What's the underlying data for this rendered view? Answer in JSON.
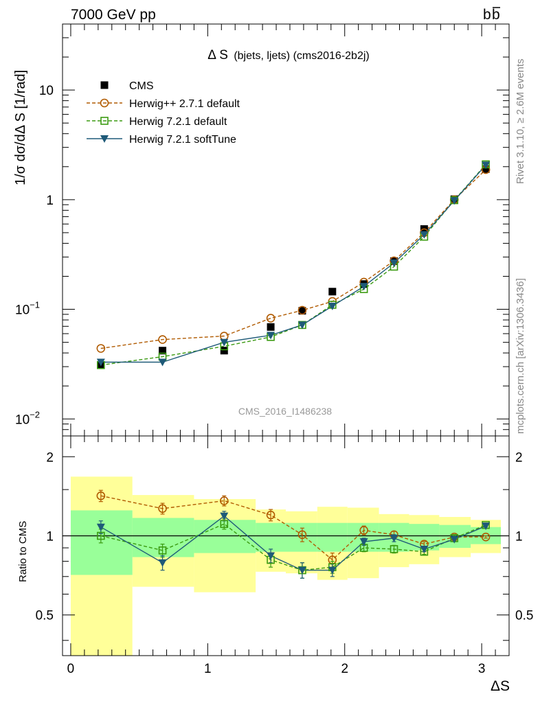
{
  "header": {
    "left": "7000 GeV pp",
    "right_main": "b",
    "right_bar": "b"
  },
  "side_text": {
    "rivet": "Rivet 3.1.10, ≥ 2.6M events",
    "mcplots": "mcplots.cern.ch [arXiv:1306.3436]"
  },
  "chart_data": [
    {
      "type": "line",
      "title_main": "Δ S",
      "title_sub": "(bjets, ljets) (cms2016-2b2j)",
      "watermark": "CMS_2016_I1486238",
      "ylabel": "1/σ dσ/dΔ S [1/rad]",
      "yscale": "log",
      "ylim": [
        0.007,
        40
      ],
      "xlim": [
        -0.06,
        3.2
      ],
      "y_ticks": [
        0.01,
        0.1,
        1,
        10
      ],
      "y_tick_labels": [
        {
          "base": "10",
          "exp": "−2"
        },
        {
          "base": "10",
          "exp": "−1"
        },
        {
          "base": "1",
          "exp": ""
        },
        {
          "base": "10",
          "exp": ""
        }
      ],
      "legend_position": "top-left",
      "colors": {
        "cms": "#000000",
        "herwigpp": "#b05a00",
        "h721": "#3a9a10",
        "soft": "#1e5a78"
      },
      "legend": [
        "CMS",
        "Herwig++ 2.7.1 default",
        "Herwig 7.2.1 default",
        "Herwig 7.2.1 softTune"
      ],
      "x": [
        0.22,
        0.67,
        1.12,
        1.46,
        1.69,
        1.91,
        2.14,
        2.36,
        2.58,
        2.8,
        3.03
      ],
      "series": [
        {
          "name": "CMS",
          "key": "cms",
          "values": [
            0.031,
            0.042,
            0.042,
            0.069,
            0.097,
            0.145,
            0.17,
            0.275,
            0.54,
            1.01,
            1.9
          ]
        },
        {
          "name": "Herwig++ 2.7.1 default",
          "key": "herwigpp",
          "values": [
            0.044,
            0.053,
            0.057,
            0.083,
            0.098,
            0.118,
            0.177,
            0.277,
            0.5,
            1.0,
            1.88
          ]
        },
        {
          "name": "Herwig 7.2.1 default",
          "key": "h721",
          "values": [
            0.031,
            0.037,
            0.046,
            0.056,
            0.072,
            0.11,
            0.153,
            0.245,
            0.46,
            0.99,
            2.1
          ]
        },
        {
          "name": "Herwig 7.2.1 softTune",
          "key": "soft",
          "values": [
            0.033,
            0.033,
            0.05,
            0.058,
            0.072,
            0.107,
            0.162,
            0.265,
            0.48,
            0.98,
            2.07
          ]
        }
      ]
    },
    {
      "type": "line",
      "ylabel": "Ratio to CMS",
      "xlabel": "ΔS",
      "yscale": "log",
      "ylim": [
        0.35,
        2.4
      ],
      "xlim": [
        -0.06,
        3.2
      ],
      "y_ticks": [
        0.5,
        1,
        2
      ],
      "y_tick_labels": [
        "0.5",
        "1",
        "2"
      ],
      "x_ticks": [
        0,
        1,
        2,
        3
      ],
      "x_tick_labels": [
        "0",
        "1",
        "2",
        "3"
      ],
      "bands": {
        "edges": [
          0.0,
          0.45,
          0.9,
          1.35,
          1.57,
          1.8,
          2.02,
          2.25,
          2.47,
          2.69,
          2.92,
          3.14
        ],
        "inner_lo": [
          0.71,
          0.83,
          0.86,
          0.87,
          0.87,
          0.87,
          0.87,
          0.87,
          0.88,
          0.9,
          0.93
        ],
        "inner_hi": [
          1.25,
          1.17,
          1.15,
          1.12,
          1.12,
          1.12,
          1.12,
          1.12,
          1.11,
          1.1,
          1.08
        ],
        "outer_lo": [
          0.3,
          0.64,
          0.61,
          0.73,
          0.72,
          0.68,
          0.69,
          0.76,
          0.78,
          0.83,
          0.86
        ],
        "outer_hi": [
          1.68,
          1.43,
          1.38,
          1.26,
          1.24,
          1.29,
          1.28,
          1.21,
          1.2,
          1.18,
          1.15
        ]
      },
      "x": [
        0.22,
        0.67,
        1.12,
        1.46,
        1.69,
        1.91,
        2.14,
        2.36,
        2.58,
        2.8,
        3.03
      ],
      "series": [
        {
          "name": "Herwig++ 2.7.1 default",
          "key": "herwigpp",
          "values": [
            1.42,
            1.27,
            1.36,
            1.2,
            1.01,
            0.81,
            1.05,
            1.01,
            0.93,
            0.99,
            0.99
          ],
          "err": [
            0.07,
            0.06,
            0.06,
            0.06,
            0.06,
            0.05,
            0.04,
            0.03,
            0.02,
            0.02,
            0.01
          ]
        },
        {
          "name": "Herwig 7.2.1 default",
          "key": "h721",
          "values": [
            1.0,
            0.88,
            1.11,
            0.81,
            0.74,
            0.76,
            0.9,
            0.89,
            0.87,
            0.98,
            1.1
          ],
          "err": [
            0.06,
            0.05,
            0.05,
            0.05,
            0.05,
            0.04,
            0.03,
            0.03,
            0.02,
            0.02,
            0.01
          ]
        },
        {
          "name": "Herwig 7.2.1 softTune",
          "key": "soft",
          "values": [
            1.08,
            0.79,
            1.19,
            0.84,
            0.74,
            0.74,
            0.95,
            0.98,
            0.89,
            0.97,
            1.09
          ],
          "err": [
            0.06,
            0.05,
            0.05,
            0.05,
            0.05,
            0.04,
            0.03,
            0.03,
            0.02,
            0.02,
            0.01
          ]
        }
      ]
    }
  ]
}
